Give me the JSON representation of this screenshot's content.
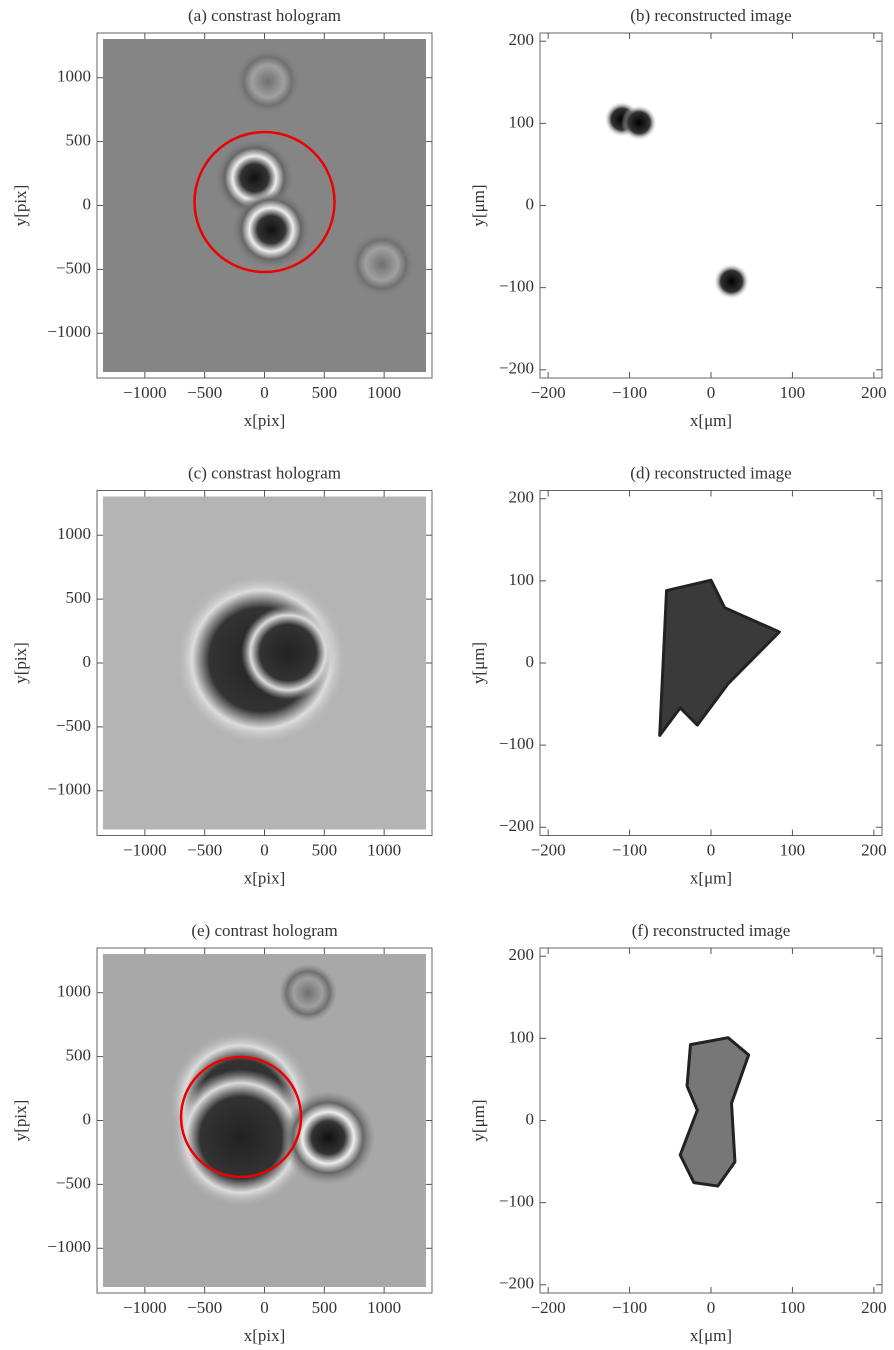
{
  "chart_data": [
    {
      "type": "image",
      "title": "(a) constrast hologram",
      "xlabel": "x[pix]",
      "ylabel": "y[pix]",
      "xlim": [
        -1400,
        1400
      ],
      "ylim": [
        -1350,
        1350
      ],
      "xticks": [
        {
          "value": -1000,
          "label": "−1000"
        },
        {
          "value": -500,
          "label": "−500"
        },
        0,
        500,
        1000
      ],
      "yticks": [
        {
          "value": -1000,
          "label": "−1000"
        },
        {
          "value": -500,
          "label": "−500"
        },
        0,
        500,
        1000
      ]
    },
    {
      "type": "image",
      "title": "(b) reconstructed image",
      "xlabel": "x[μm]",
      "ylabel": "y[μm]",
      "xlim": [
        -210,
        210
      ],
      "ylim": [
        -210,
        210
      ],
      "xticks": [
        {
          "value": -200,
          "label": "−200"
        },
        {
          "value": -100,
          "label": "−100"
        },
        0,
        100,
        200
      ],
      "yticks": [
        {
          "value": -200,
          "label": "−200"
        },
        {
          "value": -100,
          "label": "−100"
        },
        0,
        100,
        200
      ]
    },
    {
      "type": "image",
      "title": "(c) constrast hologram",
      "xlabel": "x[pix]",
      "ylabel": "y[pix]",
      "xlim": [
        -1400,
        1400
      ],
      "ylim": [
        -1350,
        1350
      ],
      "xticks": [
        {
          "value": -1000,
          "label": "−1000"
        },
        {
          "value": -500,
          "label": "−500"
        },
        0,
        500,
        1000
      ],
      "yticks": [
        {
          "value": -1000,
          "label": "−1000"
        },
        {
          "value": -500,
          "label": "−500"
        },
        0,
        500,
        1000
      ]
    },
    {
      "type": "image",
      "title": "(d) reconstructed image",
      "xlabel": "x[μm]",
      "ylabel": "y[μm]",
      "xlim": [
        -210,
        210
      ],
      "ylim": [
        -210,
        210
      ],
      "xticks": [
        {
          "value": -200,
          "label": "−200"
        },
        {
          "value": -100,
          "label": "−100"
        },
        0,
        100,
        200
      ],
      "yticks": [
        {
          "value": -200,
          "label": "−200"
        },
        {
          "value": -100,
          "label": "−100"
        },
        0,
        100,
        200
      ]
    },
    {
      "type": "image",
      "title": "(e) contrast hologram",
      "xlabel": "x[pix]",
      "ylabel": "y[pix]",
      "xlim": [
        -1400,
        1400
      ],
      "ylim": [
        -1350,
        1350
      ],
      "xticks": [
        {
          "value": -1000,
          "label": "−1000"
        },
        {
          "value": -500,
          "label": "−500"
        },
        0,
        500,
        1000
      ],
      "yticks": [
        {
          "value": -1000,
          "label": "−1000"
        },
        {
          "value": -500,
          "label": "−500"
        },
        0,
        500,
        1000
      ]
    },
    {
      "type": "image",
      "title": "(f) reconstructed image",
      "xlabel": "x[μm]",
      "ylabel": "y[μm]",
      "xlim": [
        -210,
        210
      ],
      "ylim": [
        -210,
        210
      ],
      "xticks": [
        {
          "value": -200,
          "label": "−200"
        },
        {
          "value": -100,
          "label": "−100"
        },
        0,
        100,
        200
      ],
      "yticks": [
        {
          "value": -200,
          "label": "−200"
        },
        {
          "value": -100,
          "label": "−100"
        },
        0,
        100,
        200
      ]
    }
  ]
}
